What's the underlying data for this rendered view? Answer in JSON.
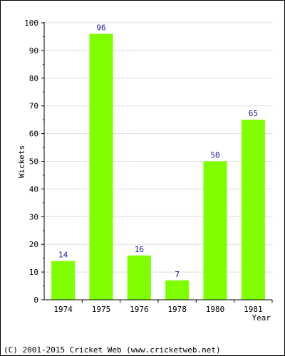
{
  "chart_data": {
    "type": "bar",
    "categories": [
      "1974",
      "1975",
      "1976",
      "1978",
      "1980",
      "1981"
    ],
    "values": [
      14,
      96,
      16,
      7,
      50,
      65
    ],
    "data_labels": [
      "14",
      "96",
      "16",
      "7",
      "50",
      "65"
    ],
    "title": "",
    "xlabel": "Year",
    "ylabel": "Wickets",
    "ylim": [
      0,
      100
    ],
    "yticks": [
      0,
      10,
      20,
      30,
      40,
      50,
      60,
      70,
      80,
      90,
      100
    ],
    "grid": true,
    "bar_color": "#7fff00",
    "label_color": "#1a1a8c"
  },
  "footer": {
    "copyright": "(C) 2001-2015 Cricket Web (www.cricketweb.net)"
  }
}
